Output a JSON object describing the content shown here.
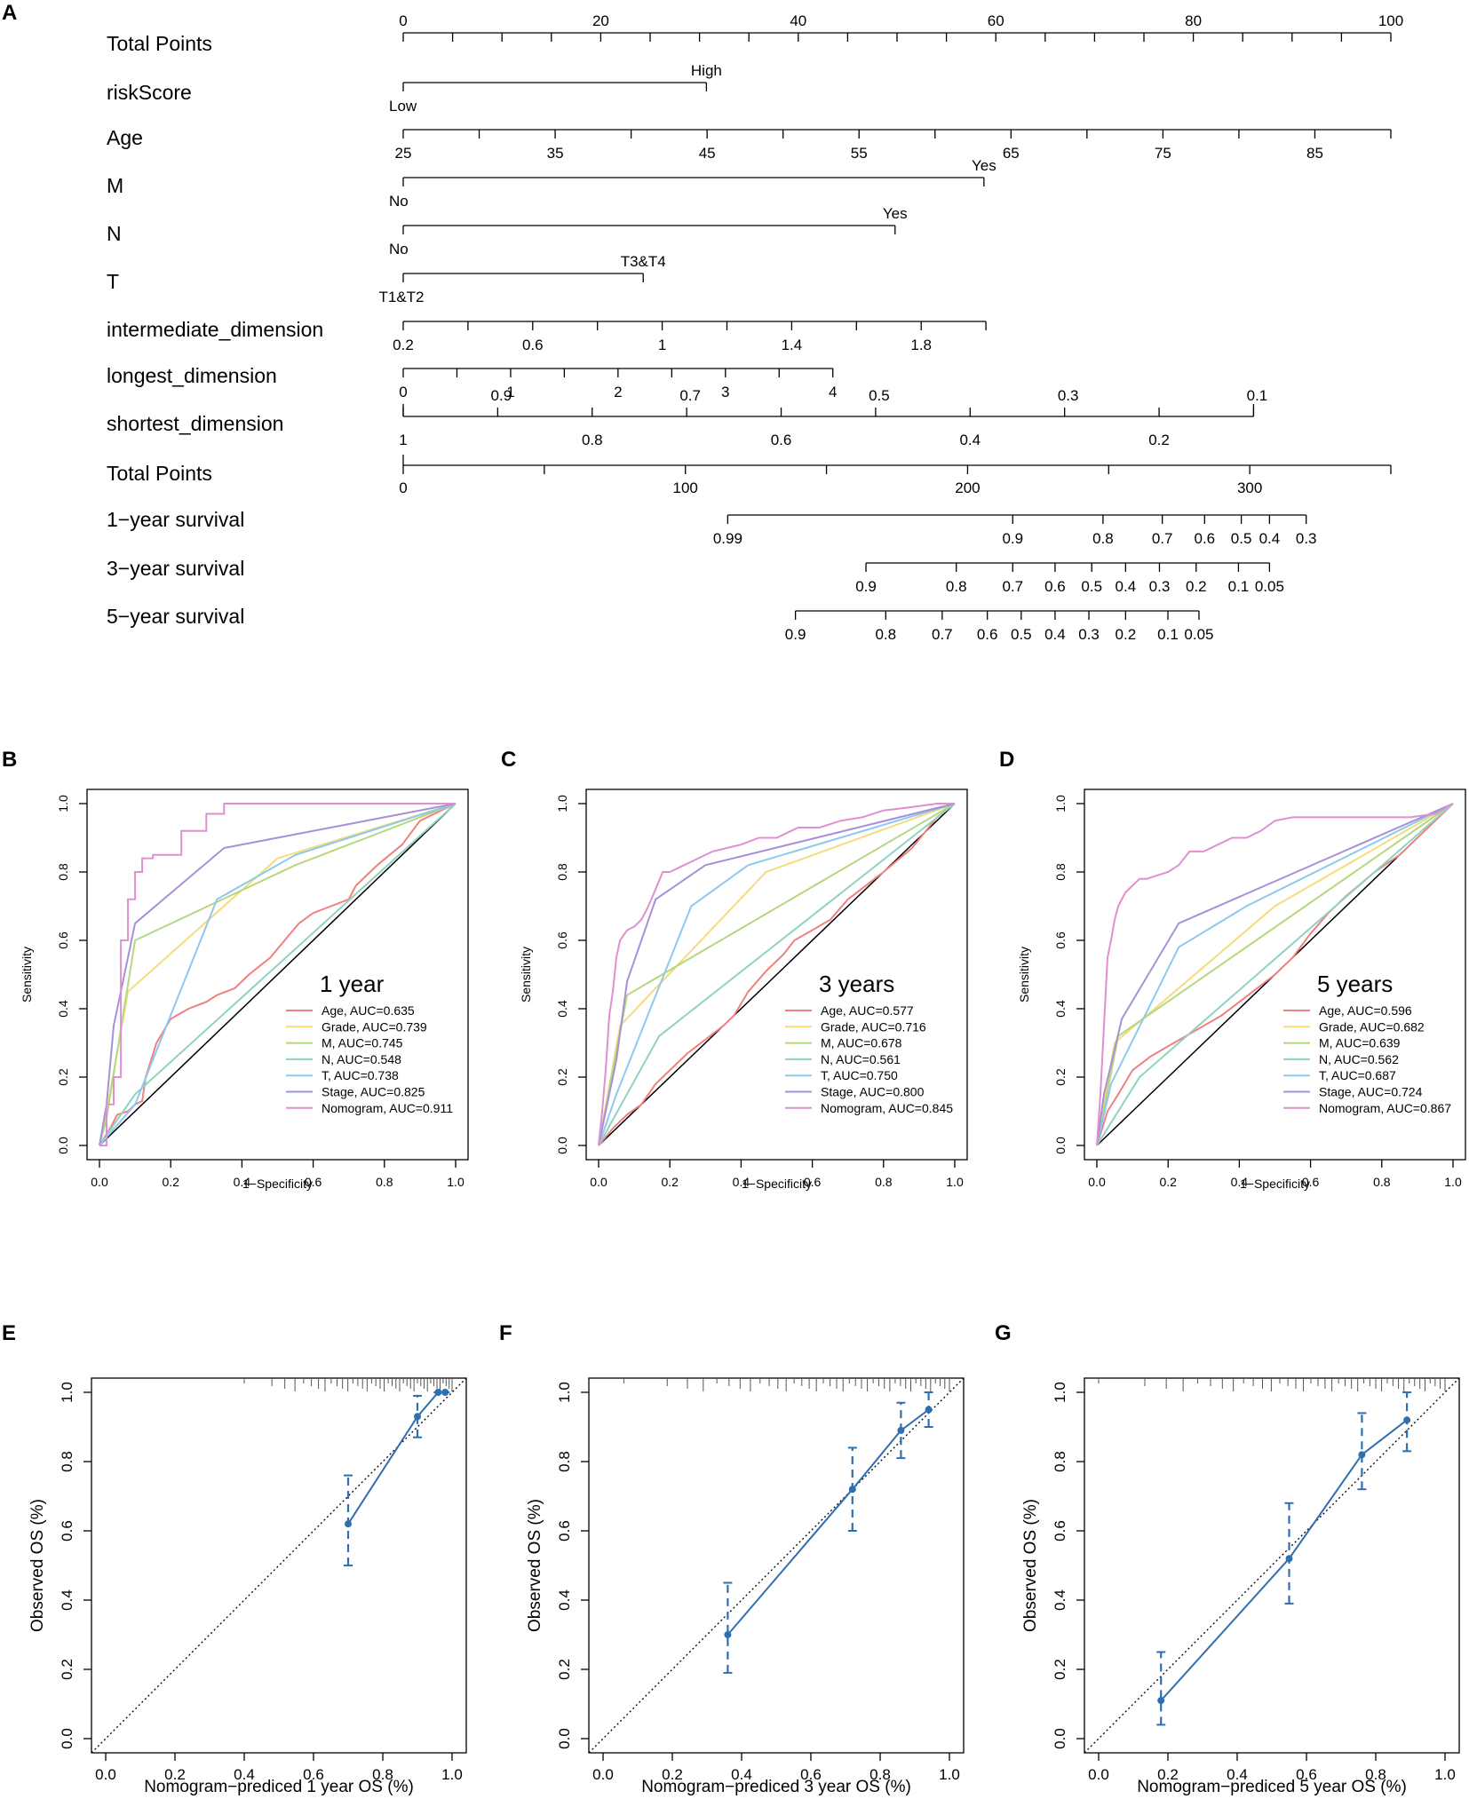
{
  "chart_data": [
    {
      "panel": "A",
      "type": "nomogram",
      "rows": [
        {
          "label": "Total Points",
          "kind": "axis",
          "range": [
            0,
            100
          ],
          "ticks": [
            0,
            5,
            10,
            15,
            20,
            25,
            30,
            35,
            40,
            45,
            50,
            55,
            60,
            65,
            70,
            75,
            80,
            85,
            90,
            95,
            100
          ],
          "labeled": [
            0,
            20,
            40,
            60,
            80,
            100
          ],
          "label_side": "above"
        },
        {
          "label": "riskScore",
          "kind": "categorical",
          "points": [
            0,
            30.7
          ],
          "lower": "Low",
          "upper": "High"
        },
        {
          "label": "Age",
          "kind": "axis",
          "points_range": [
            0,
            100
          ],
          "ticks": [
            25,
            30,
            35,
            40,
            45,
            50,
            55,
            60,
            65,
            70,
            75,
            80,
            85,
            90
          ],
          "labeled": [
            25,
            35,
            45,
            55,
            65,
            75,
            85
          ],
          "value_at_0": 25,
          "value_at_100": 90
        },
        {
          "label": "M",
          "kind": "categorical",
          "points": [
            0,
            58.8
          ],
          "lower": "No",
          "upper": "Yes"
        },
        {
          "label": "N",
          "kind": "categorical",
          "points": [
            0,
            49.8
          ],
          "lower": "No",
          "upper": "Yes"
        },
        {
          "label": "T",
          "kind": "categorical",
          "points": [
            0,
            24.3
          ],
          "lower": "T1&T2",
          "upper": "T3&T4"
        },
        {
          "label": "intermediate_dimension",
          "kind": "axis",
          "points_range": [
            0,
            59.0
          ],
          "ticks": [
            0.2,
            0.4,
            0.6,
            0.8,
            1.0,
            1.2,
            1.4,
            1.6,
            1.8,
            2.0
          ],
          "labeled": [
            0.2,
            0.6,
            1,
            1.4,
            1.8
          ],
          "value_at_start": 0.2,
          "value_at_end": 2.0
        },
        {
          "label": "longest_dimension",
          "kind": "axis",
          "points_range": [
            0,
            43.5
          ],
          "ticks": [
            0,
            0.5,
            1,
            1.5,
            2,
            2.5,
            3,
            3.5,
            4
          ],
          "labeled": [
            0,
            1,
            2,
            3,
            4
          ],
          "value_at_start": 0,
          "value_at_end": 4
        },
        {
          "label": "shortest_dimension",
          "kind": "axis",
          "points_range": [
            0,
            86.1
          ],
          "ticks": [
            1,
            0.9,
            0.8,
            0.7,
            0.6,
            0.5,
            0.4,
            0.3,
            0.2,
            0.1
          ],
          "labeled_above": [
            "0.9",
            "0.7",
            "0.5",
            "0.3",
            "0.1"
          ],
          "labeled_below": [
            "1",
            "0.8",
            "0.6",
            "0.4",
            "0.2"
          ],
          "value_at_start": 1,
          "value_at_end": 0.1
        },
        {
          "label": "Total Points",
          "kind": "axis",
          "range": [
            0,
            350
          ],
          "ticks": [
            0,
            50,
            100,
            150,
            200,
            250,
            300,
            350
          ],
          "labeled": [
            0,
            100,
            200,
            300
          ]
        },
        {
          "label": "1−year survival",
          "kind": "survival",
          "values": [
            "0.99",
            "0.9",
            "0.8",
            "0.7",
            "0.6",
            "0.5",
            "0.4",
            "0.3"
          ],
          "total_points": [
            115,
            216,
            248,
            269,
            284,
            297,
            307,
            320
          ]
        },
        {
          "label": "3−year survival",
          "kind": "survival",
          "values": [
            "0.9",
            "0.8",
            "0.7",
            "0.6",
            "0.5",
            "0.4",
            "0.3",
            "0.2",
            "0.1",
            "0.05"
          ],
          "total_points": [
            164,
            196,
            216,
            231,
            244,
            256,
            268,
            281,
            296,
            307
          ]
        },
        {
          "label": "5−year survival",
          "kind": "survival",
          "values": [
            "0.9",
            "0.8",
            "0.7",
            "0.6",
            "0.5",
            "0.4",
            "0.3",
            "0.2",
            "0.1",
            "0.05"
          ],
          "total_points": [
            139,
            171,
            191,
            207,
            219,
            231,
            243,
            256,
            271,
            282
          ]
        }
      ]
    },
    {
      "panel": "B",
      "type": "line",
      "title": "1 year",
      "xlabel": "1−Specificity",
      "ylabel": "Sensitivity",
      "xlim": [
        0,
        1
      ],
      "ylim": [
        0,
        1
      ],
      "ticks": [
        "0.0",
        "0.2",
        "0.4",
        "0.6",
        "0.8",
        "1.0"
      ],
      "series": [
        {
          "name": "Age, AUC=0.635",
          "color": "#f08080",
          "x": [
            0,
            0.03,
            0.05,
            0.08,
            0.1,
            0.12,
            0.13,
            0.16,
            0.2,
            0.25,
            0.3,
            0.33,
            0.38,
            0.42,
            0.48,
            0.52,
            0.56,
            0.6,
            0.65,
            0.7,
            0.72,
            0.78,
            0.85,
            0.9,
            1
          ],
          "y": [
            0,
            0.05,
            0.09,
            0.1,
            0.12,
            0.13,
            0.2,
            0.3,
            0.37,
            0.4,
            0.42,
            0.44,
            0.46,
            0.5,
            0.55,
            0.6,
            0.65,
            0.68,
            0.7,
            0.72,
            0.76,
            0.82,
            0.88,
            0.95,
            1
          ]
        },
        {
          "name": "Grade, AUC=0.739",
          "color": "#f5dc7a",
          "x": [
            0,
            0.02,
            0.08,
            0.5,
            1
          ],
          "y": [
            0,
            0.1,
            0.45,
            0.84,
            1
          ]
        },
        {
          "name": "M, AUC=0.745",
          "color": "#b5d77e",
          "x": [
            0,
            0.02,
            0.1,
            0.55,
            1
          ],
          "y": [
            0,
            0.08,
            0.6,
            0.82,
            1
          ]
        },
        {
          "name": "N, AUC=0.548",
          "color": "#8fd3bf",
          "x": [
            0,
            0.1,
            1
          ],
          "y": [
            0,
            0.15,
            1
          ]
        },
        {
          "name": "T, AUC=0.738",
          "color": "#8dc9ee",
          "x": [
            0,
            0.1,
            0.33,
            0.55,
            1
          ],
          "y": [
            0,
            0.12,
            0.72,
            0.85,
            1
          ]
        },
        {
          "name": "Stage, AUC=0.825",
          "color": "#a98fd8",
          "x": [
            0,
            0.02,
            0.04,
            0.1,
            0.35,
            1
          ],
          "y": [
            0,
            0.12,
            0.35,
            0.65,
            0.87,
            1
          ]
        },
        {
          "name": "Nomogram, AUC=0.911",
          "color": "#e08fd0",
          "x": [
            0,
            0.02,
            0.02,
            0.04,
            0.04,
            0.06,
            0.06,
            0.08,
            0.08,
            0.1,
            0.1,
            0.12,
            0.12,
            0.15,
            0.15,
            0.23,
            0.23,
            0.3,
            0.3,
            0.35,
            0.35,
            0.45,
            0.45,
            0.9,
            0.9,
            1
          ],
          "y": [
            0,
            0,
            0.12,
            0.12,
            0.2,
            0.2,
            0.6,
            0.6,
            0.72,
            0.72,
            0.8,
            0.8,
            0.84,
            0.84,
            0.85,
            0.85,
            0.92,
            0.92,
            0.97,
            0.97,
            1.0,
            1.0,
            1.0,
            1.0,
            1.0,
            1
          ]
        }
      ]
    },
    {
      "panel": "C",
      "type": "line",
      "title": "3 years",
      "xlabel": "1−Specificity",
      "ylabel": "Sensitivity",
      "xlim": [
        0,
        1
      ],
      "ylim": [
        0,
        1
      ],
      "ticks": [
        "0.0",
        "0.2",
        "0.4",
        "0.6",
        "0.8",
        "1.0"
      ],
      "series": [
        {
          "name": "Age, AUC=0.577",
          "color": "#f08080",
          "x": [
            0,
            0.04,
            0.08,
            0.12,
            0.16,
            0.2,
            0.25,
            0.3,
            0.35,
            0.38,
            0.42,
            0.47,
            0.52,
            0.55,
            0.6,
            0.65,
            0.7,
            0.75,
            0.8,
            0.88,
            0.95,
            1
          ],
          "y": [
            0,
            0.05,
            0.09,
            0.12,
            0.18,
            0.22,
            0.27,
            0.31,
            0.35,
            0.38,
            0.45,
            0.51,
            0.56,
            0.6,
            0.63,
            0.66,
            0.72,
            0.76,
            0.8,
            0.87,
            0.96,
            1
          ]
        },
        {
          "name": "Grade, AUC=0.716",
          "color": "#f5dc7a",
          "x": [
            0,
            0.06,
            0.47,
            1
          ],
          "y": [
            0,
            0.35,
            0.8,
            1
          ]
        },
        {
          "name": "M, AUC=0.678",
          "color": "#b5d77e",
          "x": [
            0,
            0.08,
            1
          ],
          "y": [
            0,
            0.44,
            1
          ]
        },
        {
          "name": "N, AUC=0.561",
          "color": "#8fd3bf",
          "x": [
            0,
            0.17,
            1
          ],
          "y": [
            0,
            0.32,
            1
          ]
        },
        {
          "name": "T, AUC=0.750",
          "color": "#8dc9ee",
          "x": [
            0,
            0.05,
            0.26,
            0.42,
            1
          ],
          "y": [
            0,
            0.15,
            0.7,
            0.82,
            1
          ]
        },
        {
          "name": "Stage, AUC=0.800",
          "color": "#a98fd8",
          "x": [
            0,
            0.02,
            0.05,
            0.08,
            0.16,
            0.3,
            1
          ],
          "y": [
            0,
            0.1,
            0.25,
            0.48,
            0.72,
            0.82,
            1
          ]
        },
        {
          "name": "Nomogram, AUC=0.845",
          "color": "#e08fd0",
          "x": [
            0,
            0.01,
            0.02,
            0.03,
            0.04,
            0.05,
            0.06,
            0.08,
            0.1,
            0.12,
            0.14,
            0.16,
            0.18,
            0.2,
            0.24,
            0.28,
            0.32,
            0.36,
            0.4,
            0.45,
            0.5,
            0.56,
            0.62,
            0.68,
            0.74,
            0.8,
            0.88,
            0.95,
            1
          ],
          "y": [
            0,
            0.1,
            0.22,
            0.38,
            0.45,
            0.55,
            0.6,
            0.63,
            0.64,
            0.66,
            0.7,
            0.75,
            0.8,
            0.8,
            0.82,
            0.84,
            0.86,
            0.87,
            0.88,
            0.9,
            0.9,
            0.93,
            0.93,
            0.95,
            0.96,
            0.98,
            0.99,
            1,
            1
          ]
        }
      ]
    },
    {
      "panel": "D",
      "type": "line",
      "title": "5 years",
      "xlabel": "1−Specificity",
      "ylabel": "Sensitivity",
      "xlim": [
        0,
        1
      ],
      "ylim": [
        0,
        1
      ],
      "ticks": [
        "0.0",
        "0.2",
        "0.4",
        "0.6",
        "0.8",
        "1.0"
      ],
      "series": [
        {
          "name": "Age, AUC=0.596",
          "color": "#f08080",
          "x": [
            0,
            0.03,
            0.06,
            0.1,
            0.15,
            0.2,
            0.25,
            0.3,
            0.35,
            0.4,
            0.45,
            0.5,
            0.55,
            0.6,
            0.65,
            0.7,
            0.78,
            0.85,
            0.95,
            1
          ],
          "y": [
            0,
            0.1,
            0.15,
            0.22,
            0.26,
            0.29,
            0.32,
            0.35,
            0.38,
            0.42,
            0.46,
            0.5,
            0.55,
            0.62,
            0.68,
            0.73,
            0.8,
            0.85,
            0.95,
            1
          ]
        },
        {
          "name": "Grade, AUC=0.682",
          "color": "#f5dc7a",
          "x": [
            0,
            0.05,
            0.5,
            1
          ],
          "y": [
            0,
            0.3,
            0.7,
            1
          ]
        },
        {
          "name": "M, AUC=0.639",
          "color": "#b5d77e",
          "x": [
            0,
            0.06,
            1
          ],
          "y": [
            0,
            0.32,
            1
          ]
        },
        {
          "name": "N, AUC=0.562",
          "color": "#8fd3bf",
          "x": [
            0,
            0.12,
            1
          ],
          "y": [
            0,
            0.2,
            1
          ]
        },
        {
          "name": "T, AUC=0.687",
          "color": "#8dc9ee",
          "x": [
            0,
            0.04,
            0.23,
            0.42,
            1
          ],
          "y": [
            0,
            0.18,
            0.58,
            0.7,
            1
          ]
        },
        {
          "name": "Stage, AUC=0.724",
          "color": "#a98fd8",
          "x": [
            0,
            0.02,
            0.07,
            0.23,
            1
          ],
          "y": [
            0,
            0.15,
            0.37,
            0.65,
            1
          ]
        },
        {
          "name": "Nomogram, AUC=0.867",
          "color": "#e08fd0",
          "x": [
            0,
            0.01,
            0.02,
            0.03,
            0.04,
            0.05,
            0.06,
            0.08,
            0.1,
            0.12,
            0.14,
            0.17,
            0.2,
            0.23,
            0.26,
            0.3,
            0.34,
            0.38,
            0.42,
            0.46,
            0.5,
            0.55,
            0.6,
            0.66,
            0.72,
            0.8,
            0.88,
            0.95,
            1
          ],
          "y": [
            0,
            0.15,
            0.35,
            0.55,
            0.6,
            0.66,
            0.7,
            0.74,
            0.76,
            0.78,
            0.78,
            0.79,
            0.8,
            0.82,
            0.86,
            0.86,
            0.88,
            0.9,
            0.9,
            0.92,
            0.95,
            0.96,
            0.96,
            0.96,
            0.96,
            0.96,
            0.96,
            0.97,
            1
          ]
        }
      ]
    },
    {
      "panel": "E",
      "type": "scatter",
      "xlabel": "Nomogram−prediced 1 year OS (%)",
      "ylabel": "Observed OS (%)",
      "xlim": [
        0,
        1
      ],
      "ylim": [
        0,
        1
      ],
      "ticks": [
        "0.0",
        "0.2",
        "0.4",
        "0.6",
        "0.8",
        "1.0"
      ],
      "points": [
        {
          "x": 0.7,
          "y": 0.62,
          "lo": 0.5,
          "hi": 0.76
        },
        {
          "x": 0.9,
          "y": 0.93,
          "lo": 0.87,
          "hi": 0.99
        },
        {
          "x": 0.96,
          "y": 1.0,
          "lo": 1.0,
          "hi": 1.0
        },
        {
          "x": 0.98,
          "y": 1.0,
          "lo": 1.0,
          "hi": 1.0
        }
      ]
    },
    {
      "panel": "F",
      "type": "scatter",
      "xlabel": "Nomogram−prediced 3 year OS (%)",
      "ylabel": "Observed OS (%)",
      "xlim": [
        0,
        1
      ],
      "ylim": [
        0,
        1
      ],
      "ticks": [
        "0.0",
        "0.2",
        "0.4",
        "0.6",
        "0.8",
        "1.0"
      ],
      "points": [
        {
          "x": 0.36,
          "y": 0.3,
          "lo": 0.19,
          "hi": 0.45
        },
        {
          "x": 0.72,
          "y": 0.72,
          "lo": 0.6,
          "hi": 0.84
        },
        {
          "x": 0.86,
          "y": 0.89,
          "lo": 0.81,
          "hi": 0.97
        },
        {
          "x": 0.94,
          "y": 0.95,
          "lo": 0.9,
          "hi": 1.0
        }
      ]
    },
    {
      "panel": "G",
      "type": "scatter",
      "xlabel": "Nomogram−prediced 5 year OS (%)",
      "ylabel": "Observed OS (%)",
      "xlim": [
        0,
        1
      ],
      "ylim": [
        0,
        1
      ],
      "ticks": [
        "0.0",
        "0.2",
        "0.4",
        "0.6",
        "0.8",
        "1.0"
      ],
      "points": [
        {
          "x": 0.18,
          "y": 0.11,
          "lo": 0.04,
          "hi": 0.25
        },
        {
          "x": 0.55,
          "y": 0.52,
          "lo": 0.39,
          "hi": 0.68
        },
        {
          "x": 0.76,
          "y": 0.82,
          "lo": 0.72,
          "hi": 0.94
        },
        {
          "x": 0.89,
          "y": 0.92,
          "lo": 0.83,
          "hi": 1.0
        }
      ]
    }
  ]
}
